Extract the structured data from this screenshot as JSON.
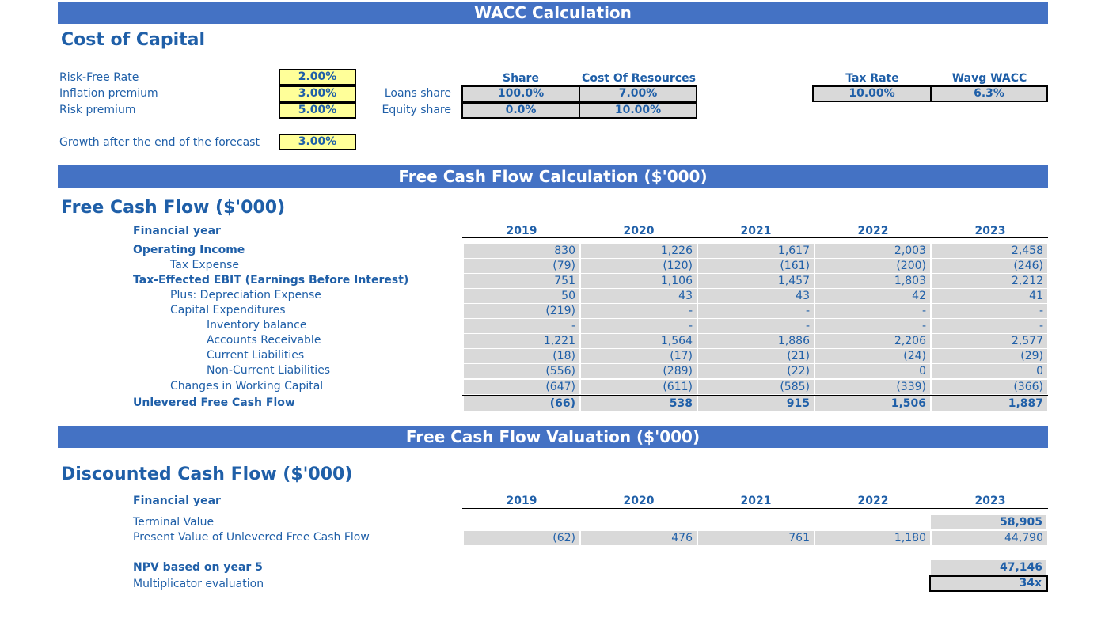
{
  "banners": {
    "wacc": "WACC Calculation",
    "fcf": "Free Cash Flow Calculation ($'000)",
    "valuation": "Free Cash Flow Valuation ($'000)"
  },
  "cost_of_capital": {
    "title": "Cost of Capital",
    "rows": [
      {
        "label": "Risk-Free Rate",
        "value": "2.00%"
      },
      {
        "label": "Inflation premium",
        "value": "3.00%"
      },
      {
        "label": "Risk premium",
        "value": "5.00%"
      }
    ],
    "growth": {
      "label": "Growth after the end of the forecast",
      "value": "3.00%"
    },
    "share_table": {
      "headers": [
        "Share",
        "Cost Of Resources"
      ],
      "rows": [
        {
          "label": "Loans share",
          "share": "100.0%",
          "cost": "7.00%"
        },
        {
          "label": "Equity share",
          "share": "0.0%",
          "cost": "10.00%"
        }
      ]
    },
    "tax_table": {
      "headers": [
        "Tax Rate",
        "Wavg WACC"
      ],
      "values": [
        "10.00%",
        "6.3%"
      ]
    }
  },
  "fcf": {
    "title": "Free Cash Flow ($'000)",
    "header_label": "Financial year",
    "years": [
      "2019",
      "2020",
      "2021",
      "2022",
      "2023"
    ],
    "rows": [
      {
        "label": "Operating Income",
        "values": [
          "830",
          "1,226",
          "1,617",
          "2,003",
          "2,458"
        ]
      },
      {
        "label": "Tax Expense",
        "values": [
          "(79)",
          "(120)",
          "(161)",
          "(200)",
          "(246)"
        ]
      },
      {
        "label": "Tax-Effected EBIT (Earnings Before Interest)",
        "values": [
          "751",
          "1,106",
          "1,457",
          "1,803",
          "2,212"
        ]
      },
      {
        "label": "Plus: Depreciation Expense",
        "values": [
          "50",
          "43",
          "43",
          "42",
          "41"
        ]
      },
      {
        "label": "Capital Expenditures",
        "values": [
          "(219)",
          "-",
          "-",
          "-",
          "-"
        ]
      },
      {
        "label": "Inventory balance",
        "values": [
          "-",
          "-",
          "-",
          "-",
          "-"
        ]
      },
      {
        "label": "Accounts Receivable",
        "values": [
          "1,221",
          "1,564",
          "1,886",
          "2,206",
          "2,577"
        ]
      },
      {
        "label": "Current Liabilities",
        "values": [
          "(18)",
          "(17)",
          "(21)",
          "(24)",
          "(29)"
        ]
      },
      {
        "label": "Non-Current Liabilities",
        "values": [
          "(556)",
          "(289)",
          "(22)",
          "0",
          "0"
        ]
      },
      {
        "label": "Changes in Working Capital",
        "values": [
          "(647)",
          "(611)",
          "(585)",
          "(339)",
          "(366)"
        ]
      },
      {
        "label": "Unlevered Free Cash Flow",
        "values": [
          "(66)",
          "538",
          "915",
          "1,506",
          "1,887"
        ]
      }
    ]
  },
  "dcf": {
    "title": "Discounted Cash Flow ($'000)",
    "header_label": "Financial year",
    "years": [
      "2019",
      "2020",
      "2021",
      "2022",
      "2023"
    ],
    "terminal_value": {
      "label": "Terminal Value",
      "value": "58,905"
    },
    "pv_row": {
      "label": "Present Value of Unlevered Free Cash Flow",
      "values": [
        "(62)",
        "476",
        "761",
        "1,180",
        "44,790"
      ]
    },
    "npv": {
      "label": "NPV based on year 5",
      "value": "47,146"
    },
    "multiplicator": {
      "label": "Multiplicator evaluation",
      "value": "34x"
    }
  }
}
